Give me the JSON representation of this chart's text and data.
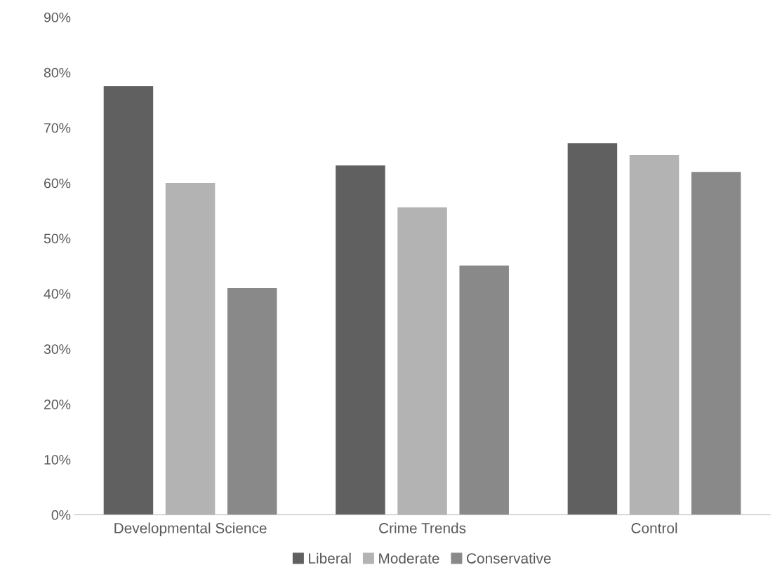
{
  "chart_data": {
    "type": "bar",
    "categories": [
      "Developmental Science",
      "Crime Trends",
      "Control"
    ],
    "series": [
      {
        "name": "Liberal",
        "color": "#606060",
        "values": [
          77.5,
          63.2,
          67.2
        ]
      },
      {
        "name": "Moderate",
        "color": "#b3b3b3",
        "values": [
          60.0,
          55.6,
          65.1
        ]
      },
      {
        "name": "Conservative",
        "color": "#898989",
        "values": [
          41.0,
          45.1,
          62.0
        ]
      }
    ],
    "ylim": [
      0,
      90
    ],
    "yticks": [
      {
        "value": 0,
        "label": "0%"
      },
      {
        "value": 10,
        "label": "10%"
      },
      {
        "value": 20,
        "label": "20%"
      },
      {
        "value": 30,
        "label": "30%"
      },
      {
        "value": 40,
        "label": "40%"
      },
      {
        "value": 50,
        "label": "50%"
      },
      {
        "value": 60,
        "label": "60%"
      },
      {
        "value": 70,
        "label": "70%"
      },
      {
        "value": 80,
        "label": "80%"
      },
      {
        "value": 90,
        "label": "90%"
      }
    ],
    "grid": false,
    "legend": "bottom"
  }
}
